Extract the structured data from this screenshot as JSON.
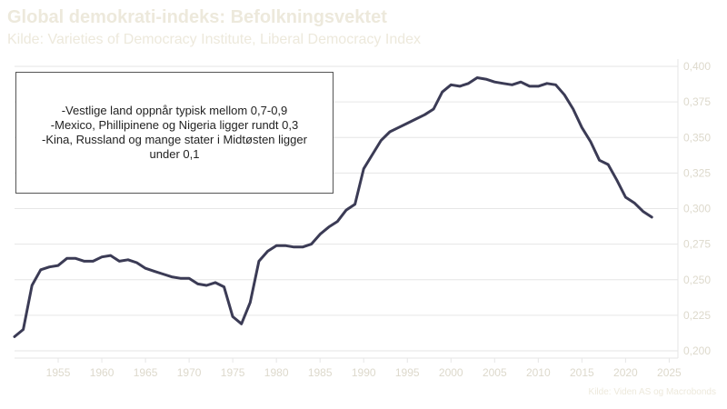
{
  "header": {
    "title": "Global demokrati-indeks: Befolkningsvektet",
    "subtitle": "Kilde: Varieties of Democracy Institute, Liberal Democracy Index"
  },
  "annotation": {
    "lines": [
      "-Vestlige land oppnår typisk mellom 0,7-0,9",
      "-Mexico, Phillipinene og Nigeria ligger rundt 0,3",
      "-Kina, Russland og mange stater i Midtøsten ligger under 0,1"
    ]
  },
  "footer": {
    "source": "Kilde: Viden AS og Macrobonds"
  },
  "colors": {
    "line": "#3b3b55",
    "grid": "#e6e6e6",
    "axis_text": "#ddd9cc",
    "title": "#ede9dc"
  },
  "chart_data": {
    "type": "line",
    "title": "Global demokrati-indeks: Befolkningsvektet",
    "xlabel": "",
    "ylabel": "",
    "xlim": [
      1950,
      2026
    ],
    "ylim": [
      0.2,
      0.4
    ],
    "grid": true,
    "y_axis_position": "right",
    "x_ticks": [
      1955,
      1960,
      1965,
      1970,
      1975,
      1980,
      1985,
      1990,
      1995,
      2000,
      2005,
      2010,
      2015,
      2020,
      2025
    ],
    "y_ticks": [
      0.2,
      0.225,
      0.25,
      0.275,
      0.3,
      0.325,
      0.35,
      0.375,
      0.4
    ],
    "y_tick_labels": [
      "0,200",
      "0,225",
      "0,250",
      "0,275",
      "0,300",
      "0,325",
      "0,350",
      "0,375",
      "0,400"
    ],
    "series": [
      {
        "x": [
          1950,
          1951,
          1952,
          1953,
          1954,
          1955,
          1956,
          1957,
          1958,
          1959,
          1960,
          1961,
          1962,
          1963,
          1964,
          1965,
          1966,
          1967,
          1968,
          1969,
          1970,
          1971,
          1972,
          1973,
          1974,
          1975,
          1976,
          1977,
          1978,
          1979,
          1980,
          1981,
          1982,
          1983,
          1984,
          1985,
          1986,
          1987,
          1988,
          1989,
          1990,
          1991,
          1992,
          1993,
          1994,
          1995,
          1996,
          1997,
          1998,
          1999,
          2000,
          2001,
          2002,
          2003,
          2004,
          2005,
          2006,
          2007,
          2008,
          2009,
          2010,
          2011,
          2012,
          2013,
          2014,
          2015,
          2016,
          2017,
          2018,
          2019,
          2020,
          2021,
          2022,
          2023
        ],
        "values": [
          0.21,
          0.215,
          0.246,
          0.257,
          0.259,
          0.26,
          0.265,
          0.265,
          0.263,
          0.263,
          0.266,
          0.267,
          0.263,
          0.264,
          0.262,
          0.258,
          0.256,
          0.254,
          0.252,
          0.251,
          0.251,
          0.247,
          0.246,
          0.248,
          0.245,
          0.224,
          0.219,
          0.234,
          0.263,
          0.27,
          0.274,
          0.274,
          0.273,
          0.273,
          0.275,
          0.282,
          0.287,
          0.291,
          0.299,
          0.303,
          0.328,
          0.338,
          0.348,
          0.354,
          0.357,
          0.36,
          0.363,
          0.366,
          0.37,
          0.382,
          0.387,
          0.386,
          0.388,
          0.392,
          0.391,
          0.389,
          0.388,
          0.387,
          0.389,
          0.386,
          0.386,
          0.388,
          0.387,
          0.38,
          0.37,
          0.357,
          0.347,
          0.334,
          0.331,
          0.32,
          0.308,
          0.304,
          0.298,
          0.294
        ]
      }
    ]
  }
}
